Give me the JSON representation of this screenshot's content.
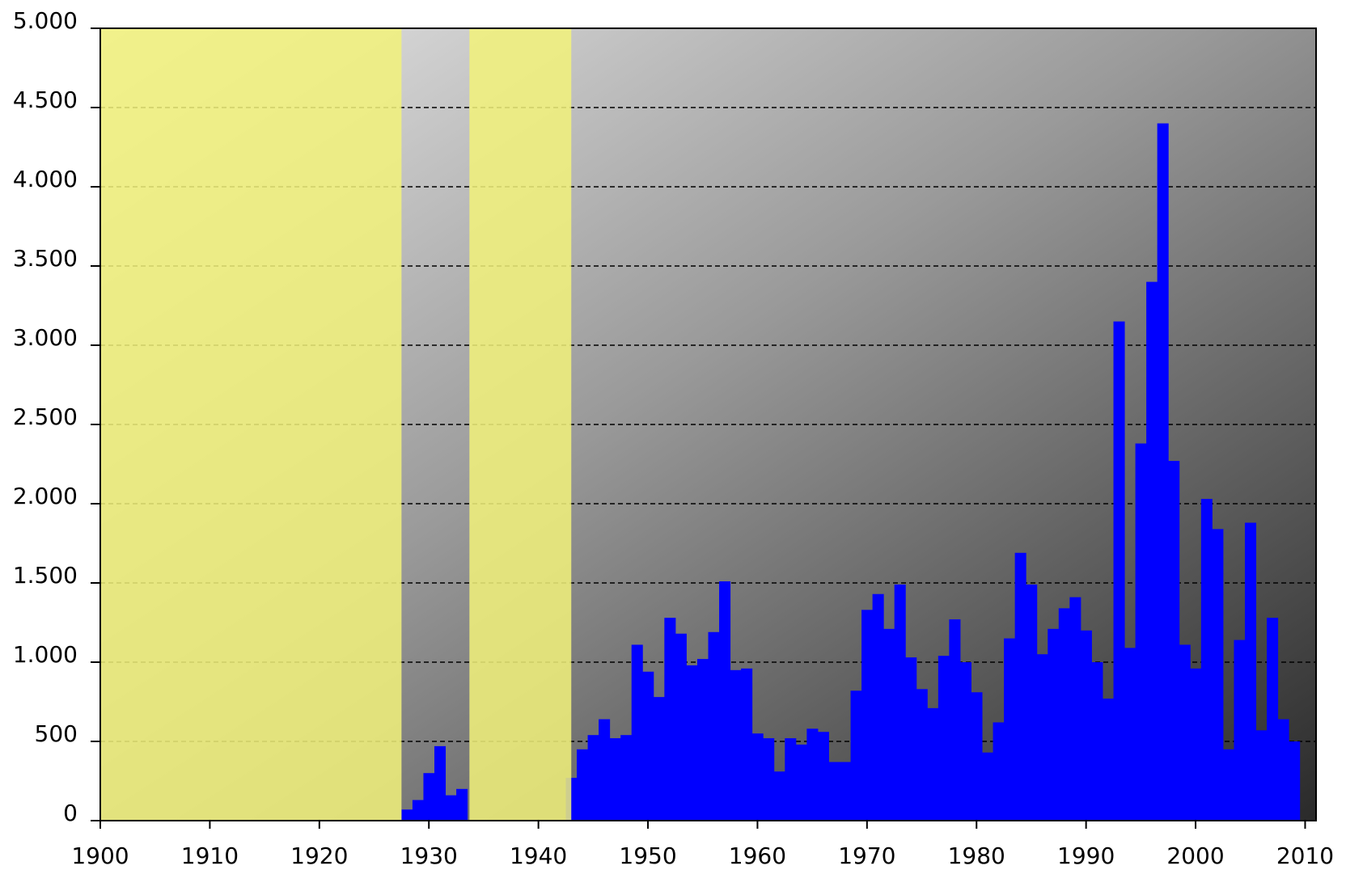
{
  "chart_data": {
    "type": "bar",
    "color": "#0000ff",
    "x": [
      1928,
      1929,
      1930,
      1931,
      1932,
      1933,
      1943,
      1944,
      1945,
      1946,
      1947,
      1948,
      1949,
      1950,
      1951,
      1952,
      1953,
      1954,
      1955,
      1956,
      1957,
      1958,
      1959,
      1960,
      1961,
      1962,
      1963,
      1964,
      1965,
      1966,
      1967,
      1968,
      1969,
      1970,
      1971,
      1972,
      1973,
      1974,
      1975,
      1976,
      1977,
      1978,
      1979,
      1980,
      1981,
      1982,
      1983,
      1984,
      1985,
      1986,
      1987,
      1988,
      1989,
      1990,
      1991,
      1992,
      1993,
      1994,
      1995,
      1996,
      1997,
      1998,
      1999,
      2000,
      2001,
      2002,
      2003,
      2004,
      2005,
      2006,
      2007,
      2008,
      2009
    ],
    "values": [
      70,
      130,
      300,
      470,
      160,
      200,
      270,
      450,
      540,
      640,
      520,
      540,
      1110,
      940,
      780,
      1280,
      1180,
      980,
      1020,
      1190,
      1510,
      950,
      960,
      550,
      520,
      310,
      520,
      480,
      580,
      560,
      370,
      370,
      820,
      1330,
      1430,
      1210,
      1490,
      1030,
      830,
      710,
      1040,
      1270,
      1000,
      810,
      430,
      620,
      1150,
      1690,
      1490,
      1050,
      1210,
      1340,
      1410,
      1200,
      1000,
      770,
      3150,
      1090,
      2380,
      3400,
      4400,
      2270,
      1110,
      960,
      2030,
      1840,
      450,
      1140,
      1880,
      570,
      1280,
      640,
      500
    ],
    "xlim": [
      1900,
      2011
    ],
    "ylim": [
      0,
      5000
    ],
    "xticks": [
      1900,
      1910,
      1920,
      1930,
      1940,
      1950,
      1960,
      1970,
      1980,
      1990,
      2000,
      2010
    ],
    "yticks": [
      0,
      500,
      {
        "value": 1000,
        "label": "1.000"
      },
      {
        "value": 1500,
        "label": "1.500"
      },
      {
        "value": 2000,
        "label": "2.000"
      },
      {
        "value": 2500,
        "label": "2.500"
      },
      {
        "value": 3000,
        "label": "3.000"
      },
      {
        "value": 3500,
        "label": "3.500"
      },
      {
        "value": 4000,
        "label": "4.000"
      },
      {
        "value": 4500,
        "label": "4.500"
      },
      {
        "value": 5000,
        "label": "5.000"
      }
    ],
    "grid": true,
    "highlight_spans": [
      [
        1900,
        1927.5
      ],
      [
        1933.7,
        1943
      ]
    ],
    "highlight_color": "#f2f27a"
  }
}
